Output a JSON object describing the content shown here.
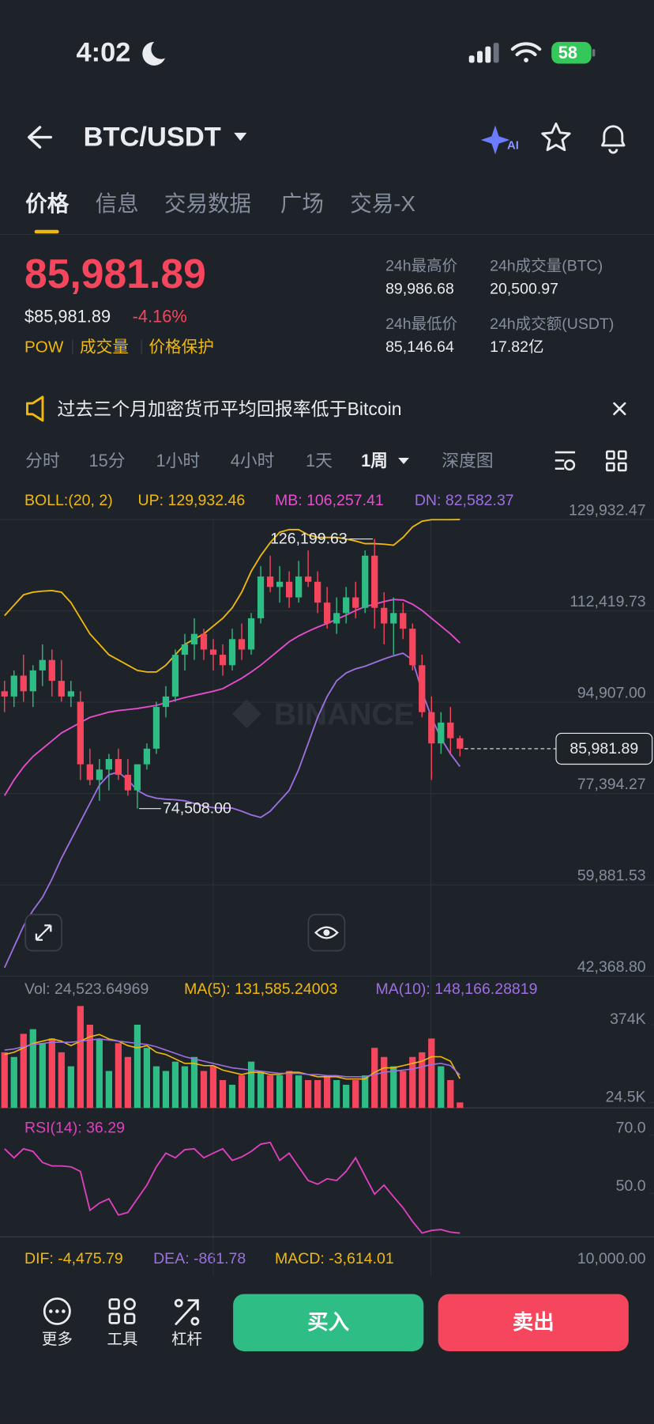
{
  "status_bar": {
    "time": "4:02",
    "battery": "58"
  },
  "header": {
    "pair": "BTC/USDT",
    "ai_badge": "AI"
  },
  "tabs": [
    "价格",
    "信息",
    "交易数据",
    "广场",
    "交易-X"
  ],
  "price_panel": {
    "price": "85,981.89",
    "usd_price": "$85,981.89",
    "change": "-4.16%",
    "tags": [
      "POW",
      "成交量",
      "价格保护"
    ],
    "stats": [
      {
        "label": "24h最高价",
        "value": "89,986.68"
      },
      {
        "label": "24h成交量(BTC)",
        "value": "20,500.97"
      },
      {
        "label": "24h最低价",
        "value": "85,146.64"
      },
      {
        "label": "24h成交额(USDT)",
        "value": "17.82亿"
      }
    ]
  },
  "notice": {
    "text": "过去三个月加密货币平均回报率低于Bitcoin"
  },
  "intervals": [
    "分时",
    "15分",
    "1小时",
    "4小时",
    "1天",
    "1周",
    "深度图"
  ],
  "indicators": {
    "boll": "BOLL:(20, 2)",
    "up": "UP: 129,932.46",
    "mb": "MB: 106,257.41",
    "dn": "DN: 82,582.37",
    "vol": "Vol: 24,523.64969",
    "vol_ma5": "MA(5): 131,585.24003",
    "vol_ma10": "MA(10): 148,166.28819",
    "rsi": "RSI(14): 36.29",
    "dif": "DIF: -4,475.79",
    "dea": "DEA: -861.78",
    "macd": "MACD: -3,614.01",
    "macd_axis": "10,000.00"
  },
  "chart_data": {
    "type": "candlestick",
    "watermark": "BINANCE",
    "up_color": "#2ebd85",
    "down_color": "#f6465d",
    "ylim": [
      42368.8,
      129932.47
    ],
    "yticks": [
      {
        "value": 129932.47,
        "label": "129,932.47"
      },
      {
        "value": 112419.73,
        "label": "112,419.73"
      },
      {
        "value": 94907.0,
        "label": "94,907.00"
      },
      {
        "value": 77394.27,
        "label": "77,394.27"
      },
      {
        "value": 59881.53,
        "label": "59,881.53"
      },
      {
        "value": 42368.8,
        "label": "42,368.80"
      }
    ],
    "grid": true,
    "candles": {
      "open": [
        97000,
        96000,
        100000,
        97000,
        101000,
        103000,
        99000,
        96000,
        95000,
        83000,
        80000,
        82000,
        84000,
        81000,
        78000,
        83000,
        86000,
        94000,
        96000,
        104000,
        106000,
        108000,
        105000,
        104000,
        102000,
        107000,
        105000,
        111000,
        119000,
        117000,
        118000,
        115000,
        119000,
        118000,
        114000,
        110000,
        112000,
        115000,
        113000,
        123000,
        113000,
        110000,
        112000,
        109000,
        102000,
        93000,
        87000,
        91000,
        88000
      ],
      "high": [
        99000,
        101000,
        104000,
        102000,
        106000,
        105000,
        103000,
        99000,
        97000,
        86000,
        84000,
        85000,
        86000,
        84000,
        83000,
        87000,
        95000,
        98000,
        105000,
        108000,
        111000,
        109000,
        107000,
        106000,
        109000,
        110000,
        112000,
        121000,
        123000,
        121000,
        120000,
        122000,
        124000,
        120000,
        117000,
        115000,
        117000,
        118000,
        124000,
        126199.63,
        116000,
        115000,
        114000,
        110000,
        104000,
        96000,
        93000,
        94000,
        88500
      ],
      "low": [
        93000,
        94000,
        95000,
        94000,
        98000,
        96000,
        95000,
        94000,
        80000,
        79000,
        76000,
        78000,
        80000,
        77000,
        74508,
        82000,
        85000,
        92000,
        95000,
        101000,
        103000,
        103000,
        101000,
        100000,
        101000,
        103000,
        104000,
        110000,
        116000,
        114000,
        113000,
        114000,
        117000,
        112000,
        109000,
        108000,
        110000,
        111000,
        112000,
        109000,
        106000,
        104000,
        107000,
        101000,
        92000,
        80000,
        85000,
        85000,
        84500
      ],
      "close": [
        96000,
        100000,
        97000,
        101000,
        103000,
        99000,
        96000,
        97000,
        83000,
        80000,
        82000,
        84000,
        81000,
        78000,
        83000,
        86000,
        94000,
        96000,
        104000,
        106000,
        108000,
        105000,
        104000,
        102000,
        107000,
        105000,
        111000,
        119000,
        117000,
        118000,
        115000,
        119000,
        118000,
        114000,
        110000,
        112000,
        115000,
        113000,
        123000,
        113000,
        110000,
        112000,
        109000,
        102000,
        93000,
        87000,
        91000,
        88000,
        85981.89
      ]
    },
    "bands": [
      {
        "color": "#f0b90b",
        "values": [
          111500,
          113500,
          115500,
          116000,
          116200,
          116300,
          116000,
          114000,
          111000,
          108000,
          106000,
          104000,
          103000,
          102000,
          101000,
          100700,
          100700,
          102000,
          104000,
          106000,
          107000,
          108000,
          109500,
          111000,
          113000,
          116000,
          120000,
          123000,
          125500,
          127500,
          128000,
          128000,
          127000,
          126500,
          126500,
          126500,
          126200,
          125800,
          125300,
          125300,
          125200,
          125000,
          126500,
          128500,
          129600,
          129900,
          129900,
          129900,
          129932.46
        ]
      },
      {
        "color": "#e84ccf",
        "values": [
          77000,
          80000,
          82500,
          84500,
          86000,
          87500,
          89000,
          90000,
          91000,
          92000,
          92500,
          93000,
          93300,
          93500,
          93700,
          94000,
          94300,
          94800,
          95300,
          95800,
          96200,
          96600,
          97000,
          97500,
          98500,
          99500,
          100700,
          102000,
          103500,
          105000,
          106500,
          107600,
          108500,
          109300,
          110000,
          110800,
          111600,
          112500,
          113200,
          113700,
          114200,
          114600,
          114500,
          113700,
          112500,
          111000,
          109500,
          108000,
          106257.41
        ]
      },
      {
        "color": "#9d6fe0",
        "values": [
          44000,
          48000,
          52000,
          55000,
          57500,
          61000,
          65000,
          68500,
          72000,
          75500,
          79000,
          81000,
          81500,
          80000,
          78000,
          77000,
          76500,
          76300,
          76200,
          76000,
          75500,
          75000,
          74700,
          74600,
          74600,
          74000,
          73300,
          72800,
          74000,
          76000,
          78000,
          82000,
          87000,
          92000,
          96000,
          99000,
          100500,
          101300,
          101800,
          102500,
          103200,
          103800,
          104300,
          103000,
          97000,
          92000,
          88000,
          85000,
          82582.37
        ]
      }
    ],
    "last_price": {
      "value": 85981.89,
      "label": "85,981.89"
    },
    "annotations": [
      {
        "value": 126199.63,
        "label": "126,199.63"
      },
      {
        "value": 74508,
        "label": "74,508.00"
      }
    ],
    "volume": {
      "ylim": [
        0,
        498000
      ],
      "yticks": [
        {
          "value": 374000,
          "label": "374K"
        },
        {
          "value": 24500,
          "label": "24.5K"
        }
      ],
      "values": [
        250000,
        229000,
        333000,
        354000,
        291000,
        312000,
        250000,
        187000,
        458000,
        374000,
        312000,
        166000,
        291000,
        229000,
        374000,
        270000,
        187000,
        166000,
        208000,
        187000,
        229000,
        166000,
        187000,
        125000,
        104000,
        146000,
        208000,
        166000,
        146000,
        146000,
        166000,
        146000,
        125000,
        125000,
        146000,
        125000,
        104000,
        125000,
        146000,
        270000,
        229000,
        187000,
        166000,
        229000,
        250000,
        312000,
        187000,
        125000,
        24523.64969
      ],
      "ma": [
        {
          "color": "#f0b90b",
          "values": [
            240000,
            250000,
            270000,
            290000,
            300000,
            310000,
            300000,
            280000,
            300000,
            320000,
            330000,
            310000,
            300000,
            280000,
            270000,
            280000,
            250000,
            240000,
            220000,
            200000,
            200000,
            190000,
            190000,
            170000,
            160000,
            150000,
            160000,
            160000,
            150000,
            150000,
            160000,
            160000,
            150000,
            140000,
            140000,
            140000,
            130000,
            130000,
            130000,
            160000,
            180000,
            180000,
            190000,
            200000,
            210000,
            230000,
            230000,
            210000,
            131585.24003
          ]
        },
        {
          "color": "#9d6fe0",
          "values": [
            260000,
            265000,
            275000,
            285000,
            290000,
            295000,
            295000,
            295000,
            300000,
            305000,
            310000,
            305000,
            300000,
            295000,
            290000,
            285000,
            275000,
            260000,
            245000,
            230000,
            220000,
            210000,
            200000,
            190000,
            180000,
            175000,
            170000,
            165000,
            160000,
            155000,
            155000,
            155000,
            150000,
            150000,
            145000,
            145000,
            140000,
            140000,
            140000,
            150000,
            160000,
            165000,
            170000,
            175000,
            185000,
            195000,
            200000,
            190000,
            148166.28819
          ]
        }
      ]
    },
    "rsi": {
      "color": "#e040c0",
      "ylim": [
        35,
        78.75
      ],
      "yticks": [
        {
          "value": 70,
          "label": "70.0"
        },
        {
          "value": 50,
          "label": "50.0"
        }
      ],
      "values": [
        65.3,
        62.2,
        65.3,
        64.4,
        60.6,
        59.4,
        59.4,
        59.1,
        57.5,
        44.1,
        46.6,
        48.1,
        42.5,
        43.4,
        48.1,
        52.8,
        59.1,
        63.8,
        62.2,
        65,
        65.3,
        62.2,
        63.8,
        65.3,
        61.3,
        62.5,
        64.4,
        66.9,
        67.5,
        61.3,
        63.8,
        59.1,
        54.4,
        53.1,
        55,
        54.4,
        57.5,
        62.2,
        55.9,
        49.7,
        52.8,
        48.8,
        45,
        40.3,
        36.3,
        37.2,
        37.5,
        36.6,
        36.29
      ]
    }
  },
  "bottom_bar": {
    "tools": [
      "更多",
      "工具",
      "杠杆"
    ],
    "buy": "买入",
    "sell": "卖出"
  }
}
